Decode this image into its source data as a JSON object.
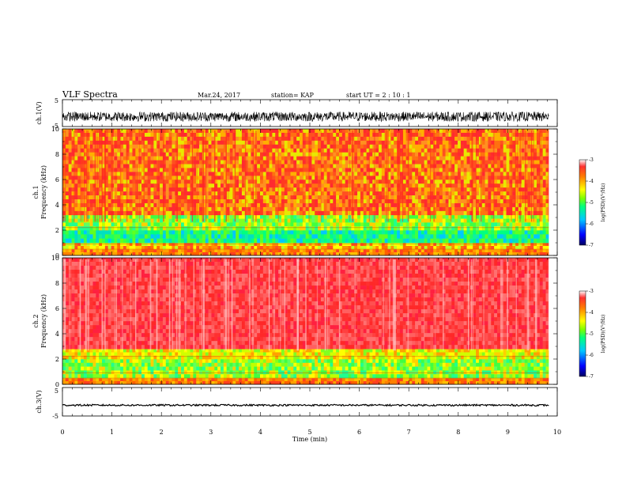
{
  "header": {
    "title": "VLF Spectra",
    "date": "Mar.24, 2017",
    "station": "station= KAP",
    "start": "start  UT =  2 : 10 : 1"
  },
  "colorbar": {
    "label": "log(PSD)(V²/Hz)",
    "ticks": [
      "-3",
      "-4",
      "-5",
      "-6",
      "-7"
    ],
    "colors": [
      "#ffffff",
      "#ff3030",
      "#ff7f00",
      "#ffff00",
      "#7fff00",
      "#00ff80",
      "#00c8ff",
      "#0000ff",
      "#000060"
    ]
  },
  "chart_data": [
    {
      "type": "line",
      "panel": "ch1-waveform",
      "ylabel": "ch.1(V)",
      "ylim": [
        -5,
        5
      ],
      "yticks": [
        "5",
        "-5"
      ],
      "xlim": [
        0,
        10
      ],
      "x_extent": 9.83,
      "mean": -1.3,
      "noise_amplitude": 1.8,
      "color": "#000000"
    },
    {
      "type": "heatmap",
      "panel": "ch1-spectrogram",
      "ylabel": "ch.1\nFrequency  (kHz)",
      "ylim": [
        0,
        10
      ],
      "yticks": [
        "0",
        "2",
        "4",
        "6",
        "8",
        "10"
      ],
      "xlim": [
        0,
        10
      ],
      "x_extent": 9.83,
      "bands_khz": [
        {
          "from": 0,
          "to": 0.5,
          "level": "orange"
        },
        {
          "from": 0.5,
          "to": 1.0,
          "level": "yellow-red"
        },
        {
          "from": 1.0,
          "to": 2.0,
          "level": "green-cyan"
        },
        {
          "from": 2.0,
          "to": 3.2,
          "level": "green-yellow"
        },
        {
          "from": 3.2,
          "to": 10,
          "level": "red-yellow"
        }
      ]
    },
    {
      "type": "heatmap",
      "panel": "ch2-spectrogram",
      "ylabel": "ch.2\nFrequency  (kHz)",
      "ylim": [
        0,
        10
      ],
      "yticks": [
        "0",
        "2",
        "4",
        "6",
        "8",
        "10"
      ],
      "xlim": [
        0,
        10
      ],
      "x_extent": 9.83,
      "bands_khz": [
        {
          "from": 0,
          "to": 0.5,
          "level": "orange"
        },
        {
          "from": 0.5,
          "to": 2.0,
          "level": "green-yellow"
        },
        {
          "from": 2.0,
          "to": 2.8,
          "level": "yellow"
        },
        {
          "from": 2.8,
          "to": 10,
          "level": "red"
        }
      ]
    },
    {
      "type": "line",
      "panel": "ch3-waveform",
      "ylabel": "ch.3(V)",
      "ylim": [
        -5,
        5
      ],
      "yticks": [
        "5",
        "-5"
      ],
      "xlim": [
        0,
        10
      ],
      "x_extent": 9.83,
      "mean": -1.2,
      "noise_amplitude": 0.3,
      "color": "#000000"
    }
  ],
  "x_axis": {
    "label": "Time  (min)",
    "ticks": [
      "0",
      "1",
      "2",
      "3",
      "4",
      "5",
      "6",
      "7",
      "8",
      "9",
      "10"
    ]
  }
}
